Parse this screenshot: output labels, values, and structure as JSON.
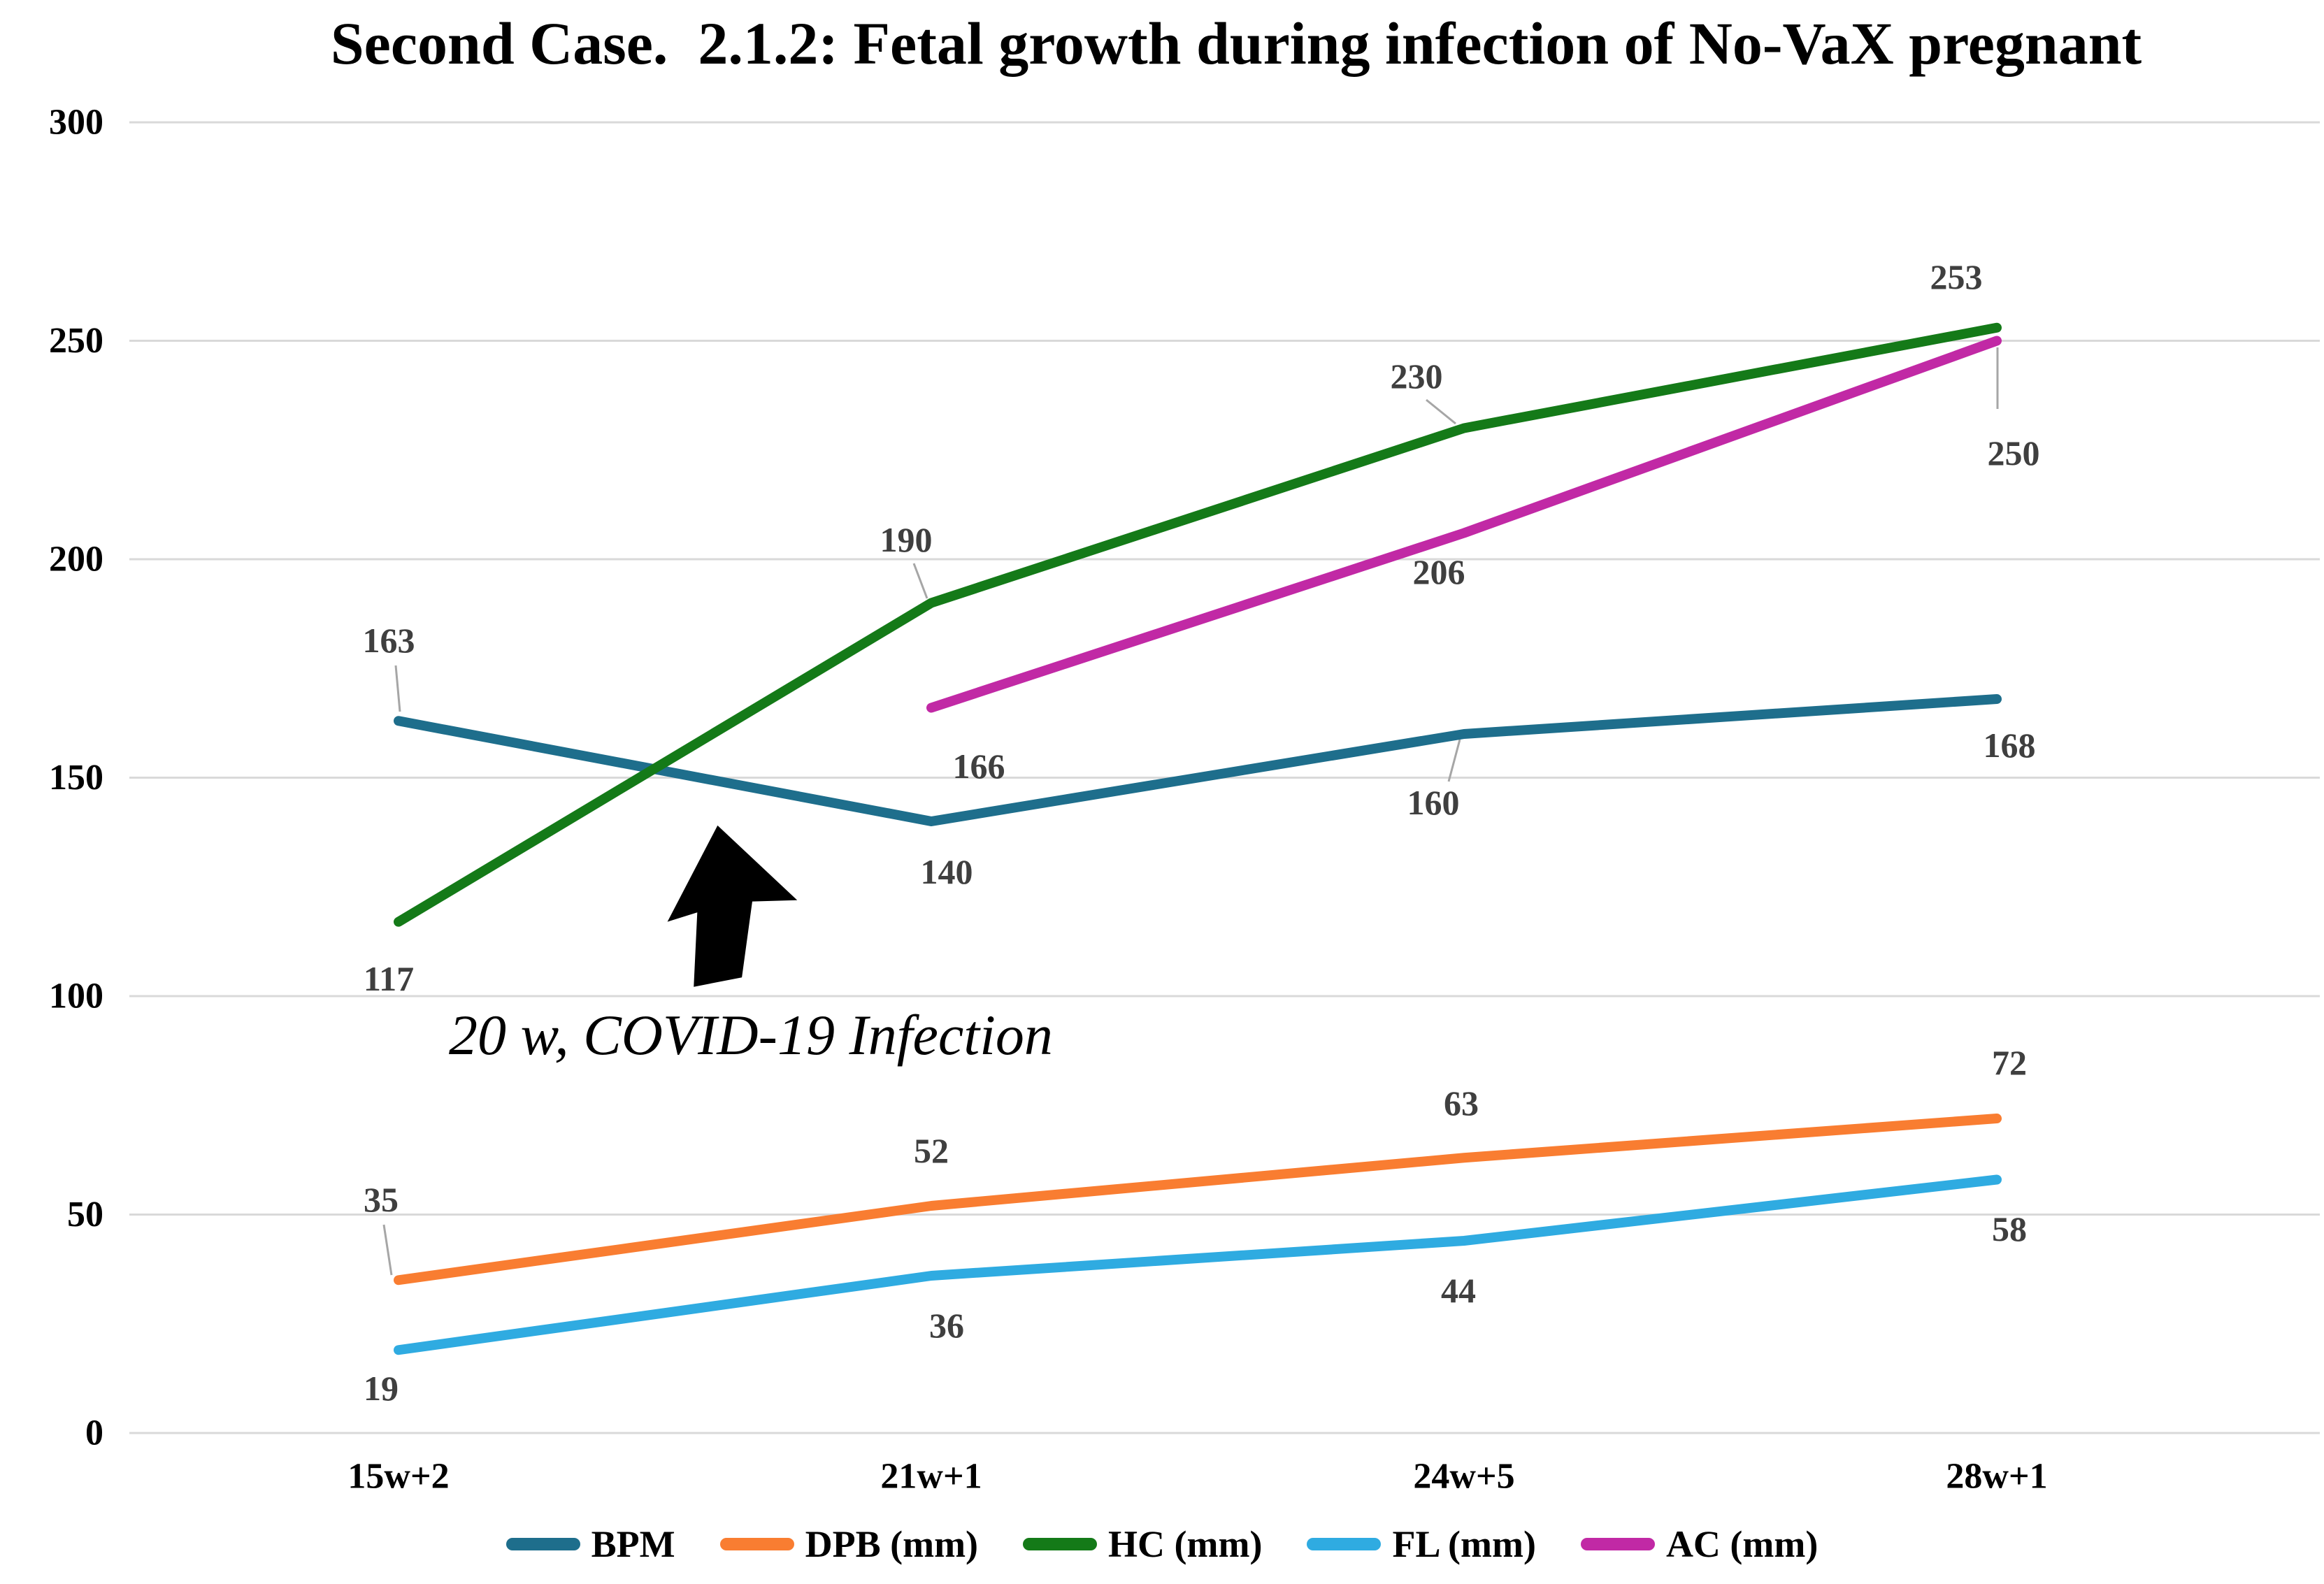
{
  "title": "Second Case.  2.1.2: Fetal growth during infection of No-VaX pregnant",
  "annotation": {
    "text": "20 w, COVID-19 Infection"
  },
  "colors": {
    "gridline": "#D9D9D9",
    "axis_tick_text": "#000000",
    "data_label": "#3F3F3F",
    "leader_line": "#A6A6A6",
    "arrow": "#000000"
  },
  "chart_data": {
    "type": "line",
    "title": "Second Case.  2.1.2: Fetal growth during infection of No-VaX pregnant",
    "categories": [
      "15w+2",
      "21w+1",
      "24w+5",
      "28w+1"
    ],
    "series": [
      {
        "name": "BPM",
        "color": "#1E6E8C",
        "values": [
          163,
          140,
          160,
          168
        ]
      },
      {
        "name": "DPB (mm)",
        "color": "#F97D31",
        "values": [
          35,
          52,
          63,
          72
        ]
      },
      {
        "name": "HC (mm)",
        "color": "#147A18",
        "values": [
          117,
          190,
          230,
          253
        ]
      },
      {
        "name": "FL (mm)",
        "color": "#2FABE1",
        "values": [
          19,
          36,
          44,
          58
        ]
      },
      {
        "name": "AC (mm)",
        "color": "#C129A5",
        "values": [
          null,
          166,
          206,
          250
        ]
      }
    ],
    "ylim": [
      0,
      300
    ],
    "yticks": [
      0,
      50,
      100,
      150,
      200,
      250,
      300
    ],
    "grid": true,
    "legend_position": "bottom",
    "data_labels": true,
    "annotation": "20 w, COVID-19 Infection"
  }
}
